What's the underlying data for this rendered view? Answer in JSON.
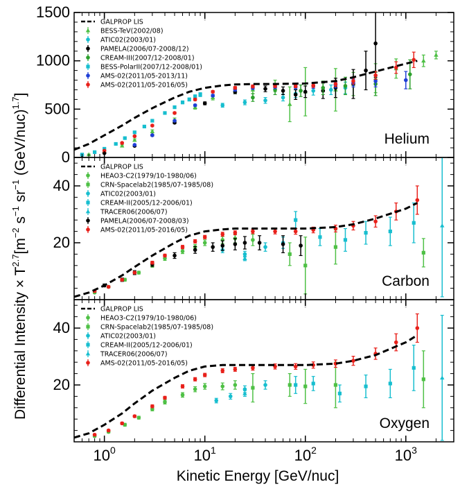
{
  "figure": {
    "xlabel": "Kinetic Energy [GeV/nuc]",
    "ylabel": "Differential Intensity × T^2.7 [m^-2 s^-1 sr^-1 (GeV/nuc)^1.7]",
    "ylabel_parts": {
      "main": "Differential Intensity  × T",
      "exp1": "2.7",
      "mid": "[m",
      "exp2": "−2",
      "s": " s",
      "exp3": "−1",
      "sr": " sr",
      "exp4": "−1",
      "tail": " (GeV/nuc)",
      "exp5": "1.7",
      "close": "]"
    },
    "x_ticks": [
      {
        "base": "10",
        "exp": "0",
        "value": 1
      },
      {
        "base": "10",
        "exp": "1",
        "value": 10
      },
      {
        "base": "10",
        "exp": "2",
        "value": 100
      },
      {
        "base": "10",
        "exp": "3",
        "value": 1000
      }
    ],
    "xlim": [
      0.5,
      3000
    ]
  },
  "chart_data": [
    {
      "type": "scatter",
      "panel_label": "Helium",
      "ylim": [
        0,
        1500
      ],
      "yticks": [
        0,
        500,
        1000,
        1500
      ],
      "ytick_labels": [
        "0",
        "500",
        "1000",
        "1500"
      ],
      "model": {
        "name": "GALPROP LIS",
        "color": "#000000",
        "x": [
          0.5,
          0.7,
          1,
          1.5,
          2,
          3,
          5,
          7,
          10,
          15,
          20,
          30,
          50,
          100,
          200,
          300,
          500,
          1000,
          1300
        ],
        "y": [
          80,
          140,
          230,
          330,
          410,
          510,
          620,
          680,
          720,
          745,
          755,
          760,
          760,
          765,
          790,
          830,
          890,
          970,
          1000
        ]
      },
      "series": [
        {
          "name": "BESS-TeV(2002/08)",
          "color": "#4ec045",
          "marker": "triangle",
          "x": [
            0.7,
            1,
            1.5,
            2,
            3,
            5,
            8,
            12,
            20,
            30,
            50,
            70,
            100,
            200,
            300,
            500,
            800,
            1500,
            2000
          ],
          "y": [
            30,
            60,
            120,
            180,
            270,
            390,
            520,
            620,
            690,
            700,
            740,
            550,
            680,
            700,
            760,
            820,
            920,
            1000,
            1060
          ],
          "err": [
            5,
            8,
            10,
            12,
            15,
            18,
            20,
            25,
            30,
            40,
            60,
            180,
            250,
            220,
            120,
            150,
            100,
            60,
            40
          ]
        },
        {
          "name": "ATIC02(2003/01)",
          "color": "#17becf",
          "marker": "circle",
          "x": [
            15,
            25,
            40,
            60,
            80,
            120,
            180,
            250
          ],
          "y": [
            540,
            570,
            590,
            620,
            660,
            690,
            700,
            720
          ],
          "err": [
            20,
            25,
            30,
            35,
            40,
            45,
            50,
            60
          ]
        },
        {
          "name": "PAMELA(2006/07-2008/12)",
          "color": "#000000",
          "marker": "circle",
          "x": [
            0.6,
            1,
            2,
            3,
            5,
            10,
            20,
            40,
            60,
            80,
            100,
            150,
            200,
            300,
            400,
            500
          ],
          "y": [
            25,
            45,
            120,
            230,
            360,
            560,
            680,
            710,
            690,
            650,
            680,
            690,
            720,
            760,
            900,
            1180
          ],
          "err": [
            3,
            4,
            6,
            8,
            10,
            15,
            20,
            30,
            40,
            50,
            60,
            80,
            100,
            150,
            200,
            350
          ]
        },
        {
          "name": "CREAM-III(2007/12-2008/01)",
          "color": "#2ca02c",
          "marker": "circle",
          "x": [
            30,
            50,
            90,
            150,
            250,
            500,
            1100
          ],
          "y": [
            620,
            700,
            690,
            720,
            740,
            760,
            860
          ],
          "err": [
            40,
            50,
            60,
            70,
            90,
            120,
            150
          ]
        },
        {
          "name": "BESS-PolarII(2007/12-2008/01)",
          "color": "#17becf",
          "marker": "square",
          "x": [
            0.6,
            0.8,
            1,
            1.3,
            1.6,
            2,
            2.5,
            3,
            4,
            5,
            6,
            7,
            8,
            9
          ],
          "y": [
            30,
            55,
            90,
            140,
            200,
            260,
            320,
            380,
            460,
            520,
            570,
            600,
            630,
            650
          ],
          "err": [
            3,
            4,
            5,
            6,
            7,
            8,
            9,
            10,
            12,
            14,
            15,
            16,
            18,
            20
          ]
        },
        {
          "name": "AMS-02(2011/05-2013/11)",
          "color": "#1f3fd6",
          "marker": "circle",
          "x": [
            2,
            3,
            5,
            8,
            12,
            20,
            30,
            50,
            80,
            120,
            200,
            300,
            500,
            1000
          ],
          "y": [
            130,
            230,
            380,
            540,
            640,
            700,
            720,
            730,
            730,
            740,
            750,
            770,
            790,
            800
          ],
          "err": [
            5,
            6,
            8,
            10,
            12,
            14,
            16,
            18,
            20,
            25,
            30,
            40,
            60,
            90
          ]
        },
        {
          "name": "AMS-02(2011/05-2016/05)",
          "color": "#e8201a",
          "marker": "circle",
          "x": [
            1,
            1.5,
            2,
            3,
            5,
            8,
            12,
            20,
            30,
            50,
            80,
            120,
            200,
            300,
            500,
            800,
            1200
          ],
          "y": [
            70,
            150,
            220,
            330,
            460,
            600,
            680,
            720,
            735,
            740,
            740,
            745,
            760,
            790,
            850,
            930,
            1010
          ],
          "err": [
            5,
            6,
            7,
            8,
            10,
            12,
            12,
            14,
            15,
            16,
            18,
            20,
            25,
            30,
            40,
            60,
            80
          ]
        }
      ]
    },
    {
      "type": "scatter",
      "panel_label": "Carbon",
      "ylim": [
        0,
        50
      ],
      "yticks": [
        20,
        40
      ],
      "ytick_labels": [
        "20",
        "40"
      ],
      "model": {
        "name": "GALPROP LIS",
        "color": "#000000",
        "x": [
          0.5,
          0.7,
          1,
          1.5,
          2,
          3,
          5,
          7,
          10,
          15,
          20,
          30,
          50,
          100,
          200,
          300,
          500,
          1000,
          1300
        ],
        "y": [
          1,
          2.5,
          5,
          8.5,
          11.5,
          15.5,
          20,
          22.5,
          24,
          24.7,
          25,
          25,
          25,
          25,
          25.5,
          26.5,
          28.5,
          32,
          34
        ]
      },
      "series": [
        {
          "name": "HEAO3-C2(1979/10-1980/06)",
          "color": "#4ec045",
          "marker": "circle",
          "x": [
            0.8,
            1.1,
            1.6,
            2.2,
            3,
            4,
            6,
            8,
            10,
            15,
            20,
            30
          ],
          "y": [
            2.5,
            4.5,
            7,
            9.5,
            12,
            14.5,
            17,
            18.5,
            20,
            21,
            21.5,
            21
          ],
          "err": [
            0.3,
            0.4,
            0.5,
            0.5,
            0.6,
            0.7,
            0.8,
            0.9,
            1,
            1.2,
            1.5,
            2
          ]
        },
        {
          "name": "CRN-Spacelab2(1985/07-1985/08)",
          "color": "#4ec045",
          "marker": "square",
          "x": [
            70,
            100,
            200,
            1500
          ],
          "y": [
            16,
            12,
            18.5,
            16.5
          ],
          "err": [
            4,
            10,
            6,
            5
          ]
        },
        {
          "name": "ATIC02(2003/01)",
          "color": "#17becf",
          "marker": "circle",
          "x": [
            15,
            25,
            40,
            60
          ],
          "y": [
            17.5,
            16,
            18.5,
            20
          ],
          "err": [
            1,
            1,
            1.5,
            2
          ]
        },
        {
          "name": "CREAM-II(2005/12-2006/01)",
          "color": "#17becf",
          "marker": "square",
          "x": [
            80,
            140,
            250,
            400,
            700,
            1200
          ],
          "y": [
            28,
            22,
            21,
            23.5,
            24,
            27
          ],
          "err": [
            3,
            3,
            4,
            4,
            5,
            7
          ]
        },
        {
          "name": "TRACER06(2006/07)",
          "color": "#17becf",
          "marker": "triangle",
          "x": [
            25,
            2300
          ],
          "y": [
            14.5,
            26
          ],
          "err": [
            0.8,
            25
          ]
        },
        {
          "name": "PAMELA(2006/07-2008/03)",
          "color": "#000000",
          "marker": "circle",
          "x": [
            1,
            1.5,
            2,
            3,
            5,
            8,
            12,
            15,
            20,
            25,
            35,
            60,
            90
          ],
          "y": [
            5,
            7,
            9.5,
            12.5,
            15.5,
            17.5,
            18.5,
            19,
            19.5,
            20,
            20,
            19.5,
            19
          ],
          "err": [
            0.5,
            0.6,
            0.7,
            0.8,
            1,
            1.2,
            1.5,
            1.7,
            2,
            2.2,
            2.5,
            3,
            3.5
          ]
        },
        {
          "name": "AMS-02(2011/05-2016/05)",
          "color": "#e8201a",
          "marker": "circle",
          "x": [
            0.8,
            1.1,
            1.5,
            2,
            3,
            4,
            6,
            8,
            10,
            15,
            20,
            30,
            50,
            80,
            120,
            200,
            300,
            500,
            800,
            1300
          ],
          "y": [
            3,
            4.5,
            7,
            9.5,
            13,
            15.5,
            18.5,
            20.5,
            22,
            23,
            23.5,
            24,
            24,
            24,
            24.5,
            25,
            26,
            27.5,
            31,
            35
          ],
          "err": [
            0.3,
            0.3,
            0.4,
            0.4,
            0.5,
            0.5,
            0.6,
            0.6,
            0.6,
            0.7,
            0.7,
            0.8,
            0.9,
            1,
            1,
            1.2,
            1.5,
            2,
            3,
            5
          ]
        }
      ]
    },
    {
      "type": "scatter",
      "panel_label": "Oxygen",
      "ylim": [
        0,
        50
      ],
      "yticks": [
        20,
        40
      ],
      "ytick_labels": [
        "20",
        "40"
      ],
      "model": {
        "name": "GALPROP LIS",
        "color": "#000000",
        "x": [
          0.5,
          0.7,
          1,
          1.5,
          2,
          3,
          5,
          7,
          10,
          15,
          20,
          30,
          50,
          100,
          200,
          300,
          500,
          1000,
          1300
        ],
        "y": [
          1.5,
          3,
          6,
          10,
          13.5,
          18,
          22.5,
          25,
          26.5,
          27,
          27,
          27,
          27,
          27,
          27.5,
          28.5,
          30.5,
          35,
          37.5
        ]
      },
      "series": [
        {
          "name": "HEAO3-C2(1979/10-1980/06)",
          "color": "#4ec045",
          "marker": "circle",
          "x": [
            0.8,
            1.1,
            1.6,
            2.2,
            3,
            4,
            6,
            8,
            10,
            15,
            20
          ],
          "y": [
            2,
            3.5,
            6,
            8.5,
            11.5,
            14,
            16.5,
            18.5,
            19.5,
            19.5,
            20
          ],
          "err": [
            0.3,
            0.4,
            0.5,
            0.5,
            0.6,
            0.7,
            0.8,
            0.9,
            1,
            1.2,
            1.5
          ]
        },
        {
          "name": "CRN-Spacelab2(1985/07-1985/08)",
          "color": "#4ec045",
          "marker": "square",
          "x": [
            30,
            70,
            100,
            200,
            1500
          ],
          "y": [
            19,
            20,
            19.5,
            20,
            22
          ],
          "err": [
            5,
            4,
            6,
            8,
            10
          ]
        },
        {
          "name": "ATIC02(2003/01)",
          "color": "#17becf",
          "marker": "circle",
          "x": [
            13,
            18,
            25,
            40
          ],
          "y": [
            14.5,
            16,
            18.5,
            20
          ],
          "err": [
            0.8,
            1,
            1.2,
            1.5
          ]
        },
        {
          "name": "CREAM-II(2005/12-2006/01)",
          "color": "#17becf",
          "marker": "square",
          "x": [
            80,
            120,
            220,
            400,
            700,
            1200
          ],
          "y": [
            20,
            20.5,
            17,
            19.5,
            20.5,
            26
          ],
          "err": [
            3,
            2.5,
            3,
            4,
            5,
            8
          ]
        },
        {
          "name": "TRACER06(2006/07)",
          "color": "#17becf",
          "marker": "triangle",
          "x": [
            25,
            2300
          ],
          "y": [
            17,
            22.5
          ],
          "err": [
            1,
            22
          ]
        },
        {
          "name": "AMS-02(2011/05-2016/05)",
          "color": "#e8201a",
          "marker": "circle",
          "x": [
            0.8,
            1.1,
            1.5,
            2,
            3,
            4,
            6,
            8,
            10,
            15,
            20,
            30,
            50,
            80,
            120,
            200,
            300,
            500,
            800,
            1300
          ],
          "y": [
            2.5,
            4,
            6.5,
            9,
            12.5,
            15.5,
            19.5,
            22,
            23.5,
            25,
            25.5,
            26,
            26.5,
            26.5,
            27,
            27.5,
            28.5,
            31,
            35,
            40
          ],
          "err": [
            0.3,
            0.3,
            0.4,
            0.4,
            0.5,
            0.5,
            0.6,
            0.6,
            0.6,
            0.7,
            0.7,
            0.8,
            0.9,
            1,
            1.1,
            1.3,
            1.6,
            2,
            3,
            5
          ]
        }
      ]
    }
  ]
}
